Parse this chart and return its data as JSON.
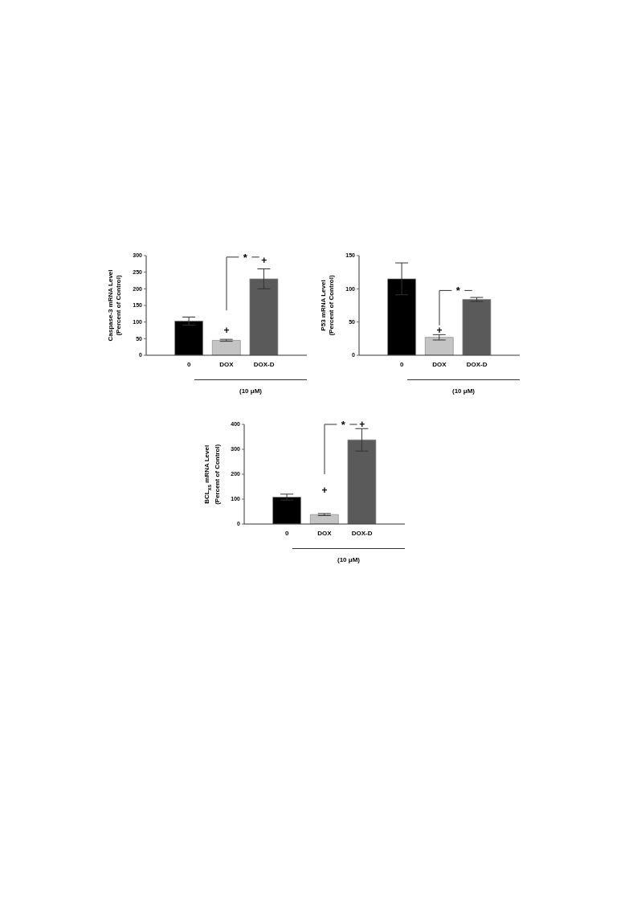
{
  "chart_data": [
    {
      "type": "bar",
      "ylabel": "Caspase-3 mRNA Level\n(Percent of Control)",
      "categories": [
        "0",
        "DOX",
        "DOX-D"
      ],
      "values": [
        103,
        45,
        230
      ],
      "colors": [
        "#000000",
        "#c4c4c4",
        "#5a5a5a"
      ],
      "errors": [
        12,
        3,
        30
      ],
      "ylim": [
        0,
        300
      ],
      "yticks": [
        0,
        50,
        100,
        150,
        200,
        250,
        300
      ],
      "grid": false,
      "annotations": [
        "+",
        "+",
        "*",
        "(10 μM)"
      ]
    },
    {
      "type": "bar",
      "ylabel": "P53 mRNA Level\n(Percent of Control)",
      "categories": [
        "0",
        "DOX",
        "DOX-D"
      ],
      "values": [
        115,
        27,
        84
      ],
      "colors": [
        "#000000",
        "#c4c4c4",
        "#5a5a5a"
      ],
      "errors": [
        24,
        4,
        3
      ],
      "ylim": [
        0,
        150
      ],
      "yticks": [
        0,
        50,
        100,
        150
      ],
      "grid": false,
      "annotations": [
        "+",
        "*",
        "(10 μM)"
      ]
    },
    {
      "type": "bar",
      "ylabel": "BCL$_{xs}$ mRNA Level\n(Percent of Control)",
      "categories": [
        "0",
        "DOX",
        "DOX-D"
      ],
      "values": [
        108,
        38,
        338
      ],
      "colors": [
        "#000000",
        "#c4c4c4",
        "#5a5a5a"
      ],
      "errors": [
        12,
        4,
        45
      ],
      "ylim": [
        0,
        400
      ],
      "yticks": [
        0,
        100,
        200,
        300,
        400
      ],
      "grid": false,
      "annotations": [
        "+",
        "+",
        "*",
        "(10 μM)"
      ]
    }
  ]
}
